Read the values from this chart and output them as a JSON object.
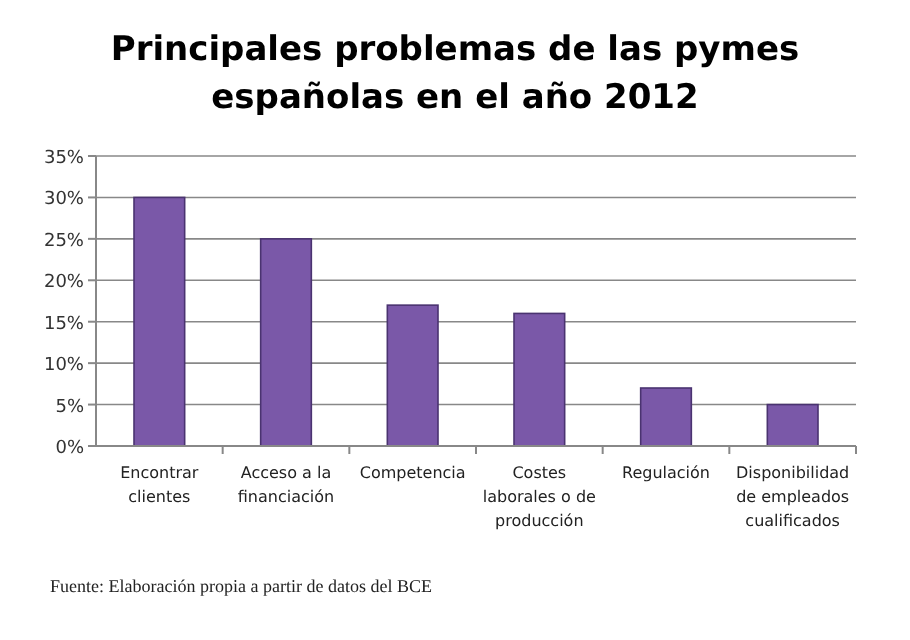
{
  "chart_data": {
    "type": "bar",
    "title": "Principales problemas de las pymes españolas en el año 2012",
    "categories": [
      "Encontrar clientes",
      "Acceso a la financiación",
      "Competencia",
      "Costes laborales o de producción",
      "Regulación",
      "Disponibilidad de empleados cualificados"
    ],
    "values": [
      30,
      25,
      17,
      16,
      7,
      5
    ],
    "color": "#7a58a8",
    "ylim": [
      0,
      35
    ],
    "yticks": [
      {
        "value": 0,
        "label": "0%"
      },
      {
        "value": 5,
        "label": "5%"
      },
      {
        "value": 10,
        "label": "10%"
      },
      {
        "value": 15,
        "label": "15%"
      },
      {
        "value": 20,
        "label": "20%"
      },
      {
        "value": 25,
        "label": "25%"
      },
      {
        "value": 30,
        "label": "30%"
      },
      {
        "value": 35,
        "label": "35%"
      }
    ],
    "grid": "y",
    "annotations": [
      "Fuente: Elaboración propia a partir de datos del BCE"
    ]
  }
}
